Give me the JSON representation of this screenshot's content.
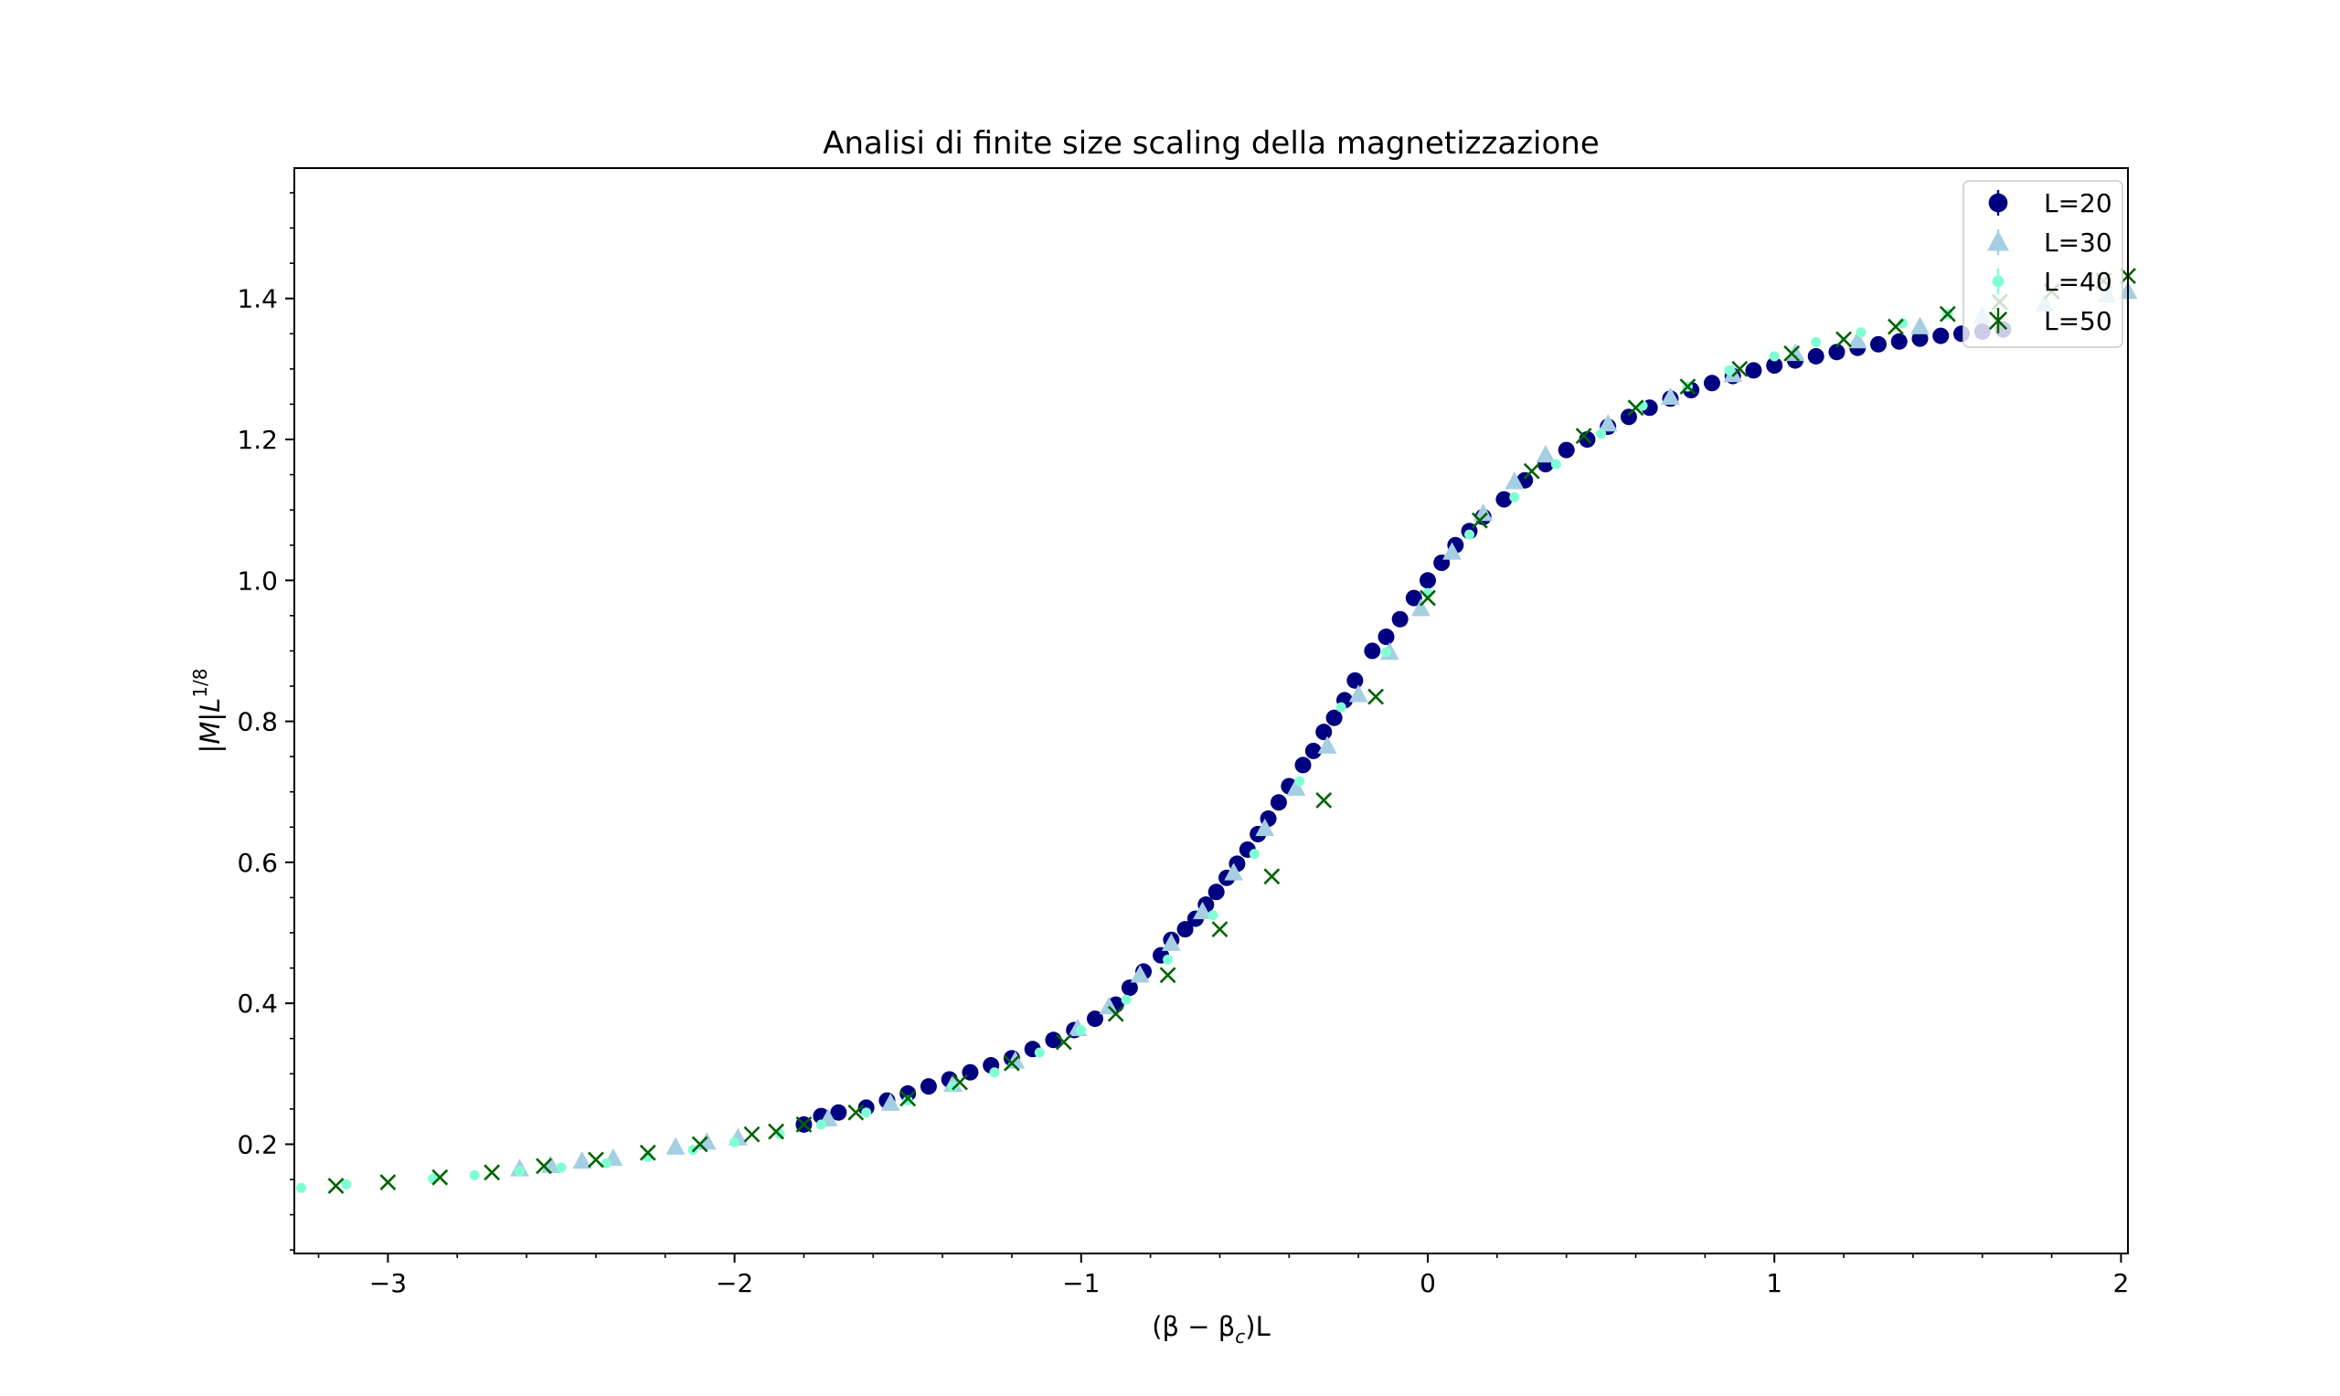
{
  "chart_data": {
    "type": "scatter",
    "title": "Analisi di finite size scaling della magnetizzazione",
    "xlabel": "(β − β",
    "xlabel_sub": "c",
    "xlabel_tail": ")L",
    "ylabel": "|M|L",
    "ylabel_sup": "1/8",
    "xlim": [
      -3.27,
      2.02
    ],
    "ylim": [
      0.045,
      1.585
    ],
    "x_ticks": [
      -3,
      -2,
      -1,
      0,
      1,
      2
    ],
    "x_tick_labels": [
      "−3",
      "−2",
      "−1",
      "0",
      "1",
      "2"
    ],
    "y_ticks": [
      0.2,
      0.4,
      0.6,
      0.8,
      1.0,
      1.2,
      1.4
    ],
    "y_tick_labels": [
      "0.2",
      "0.4",
      "0.6",
      "0.8",
      "1.0",
      "1.2",
      "1.4"
    ],
    "grid": false,
    "legend_position": "top-right",
    "series": [
      {
        "name": "L=20",
        "color": "#000080",
        "marker": "circle",
        "points": [
          [
            -1.8,
            0.228
          ],
          [
            -1.75,
            0.24
          ],
          [
            -1.7,
            0.245
          ],
          [
            -1.62,
            0.252
          ],
          [
            -1.56,
            0.262
          ],
          [
            -1.5,
            0.272
          ],
          [
            -1.44,
            0.282
          ],
          [
            -1.38,
            0.292
          ],
          [
            -1.32,
            0.302
          ],
          [
            -1.26,
            0.312
          ],
          [
            -1.2,
            0.322
          ],
          [
            -1.14,
            0.335
          ],
          [
            -1.08,
            0.348
          ],
          [
            -1.02,
            0.362
          ],
          [
            -0.96,
            0.378
          ],
          [
            -0.9,
            0.398
          ],
          [
            -0.86,
            0.422
          ],
          [
            -0.82,
            0.445
          ],
          [
            -0.77,
            0.468
          ],
          [
            -0.74,
            0.49
          ],
          [
            -0.7,
            0.505
          ],
          [
            -0.67,
            0.52
          ],
          [
            -0.64,
            0.54
          ],
          [
            -0.61,
            0.558
          ],
          [
            -0.58,
            0.578
          ],
          [
            -0.55,
            0.598
          ],
          [
            -0.52,
            0.618
          ],
          [
            -0.49,
            0.64
          ],
          [
            -0.46,
            0.662
          ],
          [
            -0.43,
            0.685
          ],
          [
            -0.4,
            0.708
          ],
          [
            -0.36,
            0.738
          ],
          [
            -0.33,
            0.758
          ],
          [
            -0.3,
            0.785
          ],
          [
            -0.27,
            0.805
          ],
          [
            -0.24,
            0.83
          ],
          [
            -0.21,
            0.858
          ],
          [
            -0.16,
            0.9
          ],
          [
            -0.12,
            0.92
          ],
          [
            -0.08,
            0.945
          ],
          [
            -0.04,
            0.975
          ],
          [
            0.0,
            1.0
          ],
          [
            0.04,
            1.025
          ],
          [
            0.08,
            1.05
          ],
          [
            0.12,
            1.07
          ],
          [
            0.16,
            1.09
          ],
          [
            0.22,
            1.115
          ],
          [
            0.28,
            1.142
          ],
          [
            0.34,
            1.165
          ],
          [
            0.4,
            1.185
          ],
          [
            0.46,
            1.2
          ],
          [
            0.52,
            1.218
          ],
          [
            0.58,
            1.232
          ],
          [
            0.64,
            1.245
          ],
          [
            0.7,
            1.258
          ],
          [
            0.76,
            1.27
          ],
          [
            0.82,
            1.28
          ],
          [
            0.88,
            1.29
          ],
          [
            0.94,
            1.298
          ],
          [
            1.0,
            1.305
          ],
          [
            1.06,
            1.312
          ],
          [
            1.12,
            1.318
          ],
          [
            1.18,
            1.324
          ],
          [
            1.24,
            1.33
          ],
          [
            1.3,
            1.335
          ],
          [
            1.36,
            1.339
          ],
          [
            1.42,
            1.343
          ],
          [
            1.48,
            1.347
          ],
          [
            1.54,
            1.35
          ],
          [
            1.6,
            1.353
          ],
          [
            1.66,
            1.356
          ]
        ]
      },
      {
        "name": "L=30",
        "color": "#a6cee3",
        "marker": "triangle",
        "points": [
          [
            -2.62,
            0.165
          ],
          [
            -2.53,
            0.17
          ],
          [
            -2.44,
            0.176
          ],
          [
            -2.35,
            0.18
          ],
          [
            -2.17,
            0.196
          ],
          [
            -2.08,
            0.203
          ],
          [
            -1.99,
            0.209
          ],
          [
            -1.73,
            0.236
          ],
          [
            -1.55,
            0.258
          ],
          [
            -1.37,
            0.285
          ],
          [
            -1.19,
            0.318
          ],
          [
            -1.01,
            0.364
          ],
          [
            -0.92,
            0.395
          ],
          [
            -0.83,
            0.44
          ],
          [
            -0.74,
            0.485
          ],
          [
            -0.65,
            0.53
          ],
          [
            -0.56,
            0.585
          ],
          [
            -0.47,
            0.648
          ],
          [
            -0.38,
            0.705
          ],
          [
            -0.29,
            0.765
          ],
          [
            -0.2,
            0.838
          ],
          [
            -0.11,
            0.898
          ],
          [
            -0.02,
            0.96
          ],
          [
            0.07,
            1.04
          ],
          [
            0.16,
            1.095
          ],
          [
            0.25,
            1.14
          ],
          [
            0.34,
            1.178
          ],
          [
            0.52,
            1.222
          ],
          [
            0.7,
            1.26
          ],
          [
            0.88,
            1.292
          ],
          [
            1.06,
            1.322
          ],
          [
            1.24,
            1.34
          ],
          [
            1.42,
            1.36
          ],
          [
            1.6,
            1.375
          ],
          [
            1.78,
            1.392
          ],
          [
            1.96,
            1.405
          ],
          [
            2.02,
            1.41
          ]
        ]
      },
      {
        "name": "L=40",
        "color": "#7fffd4",
        "marker": "small-circle",
        "points": [
          [
            -3.25,
            0.138
          ],
          [
            -3.12,
            0.143
          ],
          [
            -2.87,
            0.151
          ],
          [
            -2.75,
            0.156
          ],
          [
            -2.62,
            0.162
          ],
          [
            -2.5,
            0.167
          ],
          [
            -2.37,
            0.173
          ],
          [
            -2.25,
            0.182
          ],
          [
            -2.12,
            0.192
          ],
          [
            -2.0,
            0.203
          ],
          [
            -1.87,
            0.215
          ],
          [
            -1.75,
            0.228
          ],
          [
            -1.62,
            0.245
          ],
          [
            -1.5,
            0.262
          ],
          [
            -1.37,
            0.282
          ],
          [
            -1.25,
            0.302
          ],
          [
            -1.12,
            0.33
          ],
          [
            -1.0,
            0.362
          ],
          [
            -0.87,
            0.405
          ],
          [
            -0.75,
            0.462
          ],
          [
            -0.62,
            0.525
          ],
          [
            -0.5,
            0.612
          ],
          [
            -0.37,
            0.715
          ],
          [
            -0.25,
            0.82
          ],
          [
            -0.12,
            0.898
          ],
          [
            0.0,
            0.982
          ],
          [
            0.12,
            1.065
          ],
          [
            0.25,
            1.118
          ],
          [
            0.37,
            1.165
          ],
          [
            0.5,
            1.208
          ],
          [
            0.62,
            1.248
          ],
          [
            0.75,
            1.275
          ],
          [
            0.87,
            1.298
          ],
          [
            1.0,
            1.318
          ],
          [
            1.12,
            1.338
          ],
          [
            1.25,
            1.352
          ],
          [
            1.37,
            1.365
          ],
          [
            1.5,
            1.378
          ]
        ]
      },
      {
        "name": "L=50",
        "color": "#006400",
        "marker": "x",
        "points": [
          [
            -3.15,
            0.141
          ],
          [
            -3.0,
            0.146
          ],
          [
            -2.85,
            0.153
          ],
          [
            -2.7,
            0.16
          ],
          [
            -2.55,
            0.169
          ],
          [
            -2.4,
            0.178
          ],
          [
            -2.25,
            0.188
          ],
          [
            -2.1,
            0.2
          ],
          [
            -1.95,
            0.214
          ],
          [
            -1.88,
            0.218
          ],
          [
            -1.8,
            0.228
          ],
          [
            -1.65,
            0.245
          ],
          [
            -1.5,
            0.265
          ],
          [
            -1.35,
            0.288
          ],
          [
            -1.2,
            0.315
          ],
          [
            -1.05,
            0.345
          ],
          [
            -0.9,
            0.385
          ],
          [
            -0.75,
            0.44
          ],
          [
            -0.6,
            0.505
          ],
          [
            -0.45,
            0.58
          ],
          [
            -0.3,
            0.688
          ],
          [
            -0.15,
            0.835
          ],
          [
            0.0,
            0.975
          ],
          [
            0.15,
            1.085
          ],
          [
            0.3,
            1.155
          ],
          [
            0.45,
            1.205
          ],
          [
            0.6,
            1.245
          ],
          [
            0.75,
            1.275
          ],
          [
            0.9,
            1.3
          ],
          [
            1.05,
            1.322
          ],
          [
            1.2,
            1.342
          ],
          [
            1.35,
            1.36
          ],
          [
            1.5,
            1.378
          ],
          [
            1.65,
            1.395
          ],
          [
            1.8,
            1.41
          ],
          [
            1.95,
            1.425
          ],
          [
            2.02,
            1.432
          ]
        ]
      }
    ]
  }
}
